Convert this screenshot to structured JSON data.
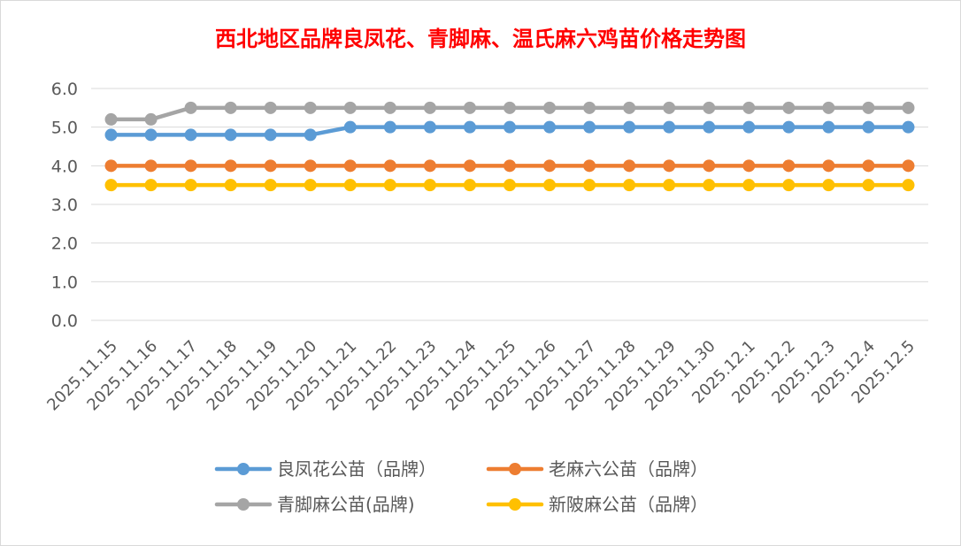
{
  "chart_data": {
    "type": "line",
    "title": "西北地区品牌良凤花、青脚麻、温氏麻六鸡苗价格走势图",
    "title_color": "#FF0000",
    "xlabel": "",
    "ylabel": "",
    "ylim": [
      0,
      6
    ],
    "y_tick_step": 1,
    "y_tick_format": "0.0",
    "grid": "horizontal",
    "legend_position": "bottom",
    "categories": [
      "2025.11.15",
      "2025.11.16",
      "2025.11.17",
      "2025.11.18",
      "2025.11.19",
      "2025.11.20",
      "2025.11.21",
      "2025.11.22",
      "2025.11.23",
      "2025.11.24",
      "2025.11.25",
      "2025.11.26",
      "2025.11.27",
      "2025.11.28",
      "2025.11.29",
      "2025.11.30",
      "2025.12.1",
      "2025.12.2",
      "2025.12.3",
      "2025.12.4",
      "2025.12.5"
    ],
    "series": [
      {
        "name": "良凤花公苗（品牌）",
        "color": "#5B9BD5",
        "values": [
          4.8,
          4.8,
          4.8,
          4.8,
          4.8,
          4.8,
          5.0,
          5.0,
          5.0,
          5.0,
          5.0,
          5.0,
          5.0,
          5.0,
          5.0,
          5.0,
          5.0,
          5.0,
          5.0,
          5.0,
          5.0
        ]
      },
      {
        "name": "老麻六公苗（品牌）",
        "color": "#ED7D31",
        "values": [
          4.0,
          4.0,
          4.0,
          4.0,
          4.0,
          4.0,
          4.0,
          4.0,
          4.0,
          4.0,
          4.0,
          4.0,
          4.0,
          4.0,
          4.0,
          4.0,
          4.0,
          4.0,
          4.0,
          4.0,
          4.0
        ]
      },
      {
        "name": "青脚麻公苗(品牌)",
        "color": "#A5A5A5",
        "values": [
          5.2,
          5.2,
          5.5,
          5.5,
          5.5,
          5.5,
          5.5,
          5.5,
          5.5,
          5.5,
          5.5,
          5.5,
          5.5,
          5.5,
          5.5,
          5.5,
          5.5,
          5.5,
          5.5,
          5.5,
          5.5
        ]
      },
      {
        "name": "新陂麻公苗（品牌）",
        "color": "#FFC000",
        "values": [
          3.5,
          3.5,
          3.5,
          3.5,
          3.5,
          3.5,
          3.5,
          3.5,
          3.5,
          3.5,
          3.5,
          3.5,
          3.5,
          3.5,
          3.5,
          3.5,
          3.5,
          3.5,
          3.5,
          3.5,
          3.5
        ]
      }
    ]
  }
}
